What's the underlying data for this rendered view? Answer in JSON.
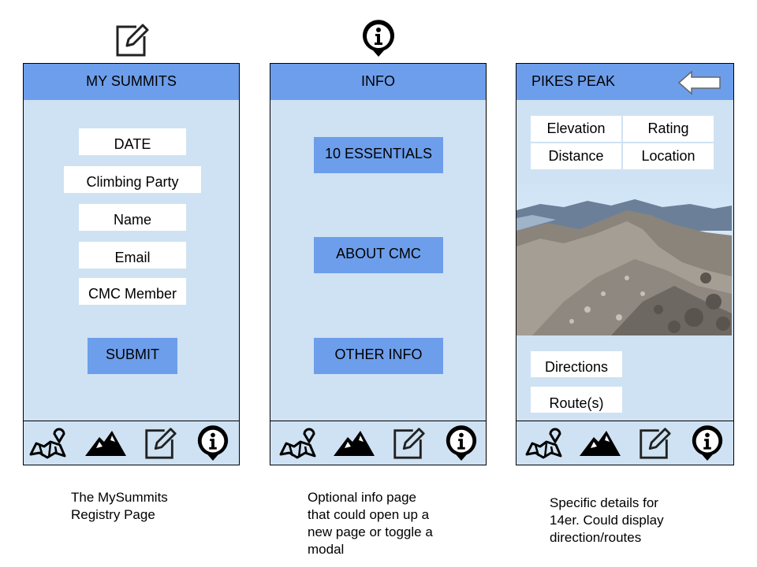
{
  "screens": {
    "my_summits": {
      "title": "MY SUMMITS",
      "fields": [
        "DATE",
        "Climbing Party",
        "Name",
        "Email",
        "CMC Member"
      ],
      "submit_label": "SUBMIT",
      "caption": "The MySummits\nRegistry Page"
    },
    "info": {
      "title": "INFO",
      "buttons": [
        "10 ESSENTIALS",
        "ABOUT CMC",
        "OTHER INFO"
      ],
      "caption": "Optional info page\nthat could open up a\nnew page or toggle a\nmodal"
    },
    "peak": {
      "title": "PIKES PEAK",
      "stats": [
        "Elevation",
        "Rating",
        "Distance",
        "Location"
      ],
      "links": [
        "Directions",
        "Route(s)"
      ],
      "caption": "Specific details for\n14er.  Could display\ndirection/routes"
    }
  },
  "nav_icons": [
    "map-icon",
    "mountain-icon",
    "edit-icon",
    "info-icon"
  ],
  "colors": {
    "screen_bg": "#cfe2f3",
    "header_bg": "#6d9eeb",
    "button_bg": "#6d9eeb",
    "field_bg": "#ffffff"
  }
}
